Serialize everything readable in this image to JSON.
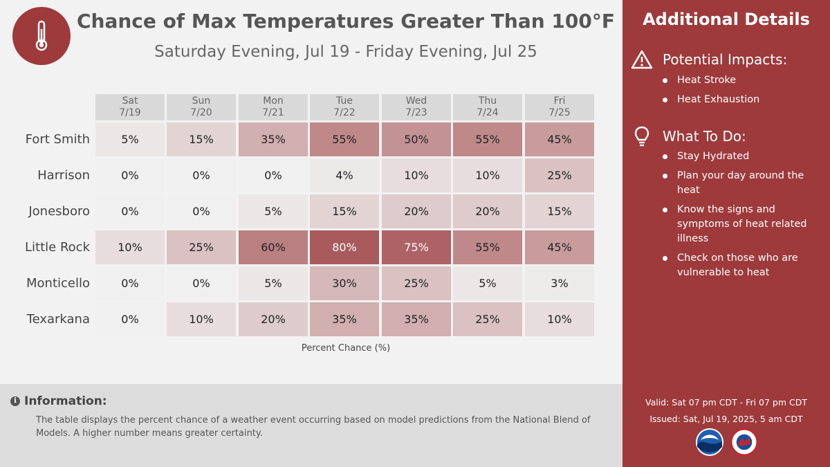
{
  "header": {
    "title": "Chance of Max Temperatures Greater Than 100°F",
    "subtitle": "Saturday Evening, Jul 19 - Friday Evening, Jul 25"
  },
  "days": [
    {
      "dow": "Sat",
      "date": "7/19"
    },
    {
      "dow": "Sun",
      "date": "7/20"
    },
    {
      "dow": "Mon",
      "date": "7/21"
    },
    {
      "dow": "Tue",
      "date": "7/22"
    },
    {
      "dow": "Wed",
      "date": "7/23"
    },
    {
      "dow": "Thu",
      "date": "7/24"
    },
    {
      "dow": "Fri",
      "date": "7/25"
    }
  ],
  "rows": [
    {
      "city": "Fort Smith",
      "values": [
        "5%",
        "15%",
        "35%",
        "55%",
        "50%",
        "55%",
        "45%"
      ]
    },
    {
      "city": "Harrison",
      "values": [
        "0%",
        "0%",
        "0%",
        "4%",
        "10%",
        "10%",
        "25%"
      ]
    },
    {
      "city": "Jonesboro",
      "values": [
        "0%",
        "0%",
        "5%",
        "15%",
        "20%",
        "20%",
        "15%"
      ]
    },
    {
      "city": "Little Rock",
      "values": [
        "10%",
        "25%",
        "60%",
        "80%",
        "75%",
        "55%",
        "45%"
      ]
    },
    {
      "city": "Monticello",
      "values": [
        "0%",
        "0%",
        "5%",
        "30%",
        "25%",
        "5%",
        "3%"
      ]
    },
    {
      "city": "Texarkana",
      "values": [
        "0%",
        "10%",
        "20%",
        "35%",
        "35%",
        "25%",
        "10%"
      ]
    }
  ],
  "axis_label": "Percent Chance (%)",
  "info": {
    "title": "Information:",
    "text": "The table displays the percent chance of a weather event occurring based on model predictions from the National Blend of Models. A higher number means greater certainty."
  },
  "sidebar": {
    "title": "Additional Details",
    "impacts_heading": "Potential Impacts:",
    "impacts": [
      "Heat Stroke",
      "Heat Exhaustion"
    ],
    "todo_heading": "What To Do:",
    "todo": [
      "Stay Hydrated",
      "Plan your day around the heat",
      "Know the signs and symptoms of heat related illness",
      "Check on those who are vulnerable to heat"
    ],
    "valid": "Valid: Sat 07 pm CDT - Fri 07 pm CDT",
    "issued": "Issued: Sat, Jul 19, 2025, 5 am CDT"
  },
  "colors": {
    "accent": "#9e3a3b",
    "cell_base": "#f0f0f0",
    "cell_max": "#a85a5c"
  }
}
